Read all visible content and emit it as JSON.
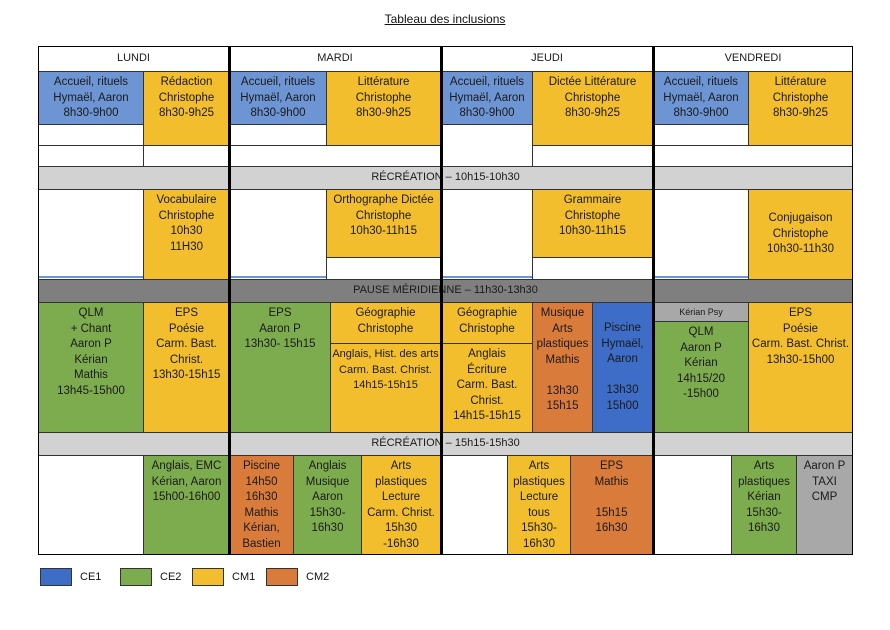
{
  "title": "Tableau des inclusions",
  "days": [
    "LUNDI",
    "MARDI",
    "JEUDI",
    "VENDREDI"
  ],
  "breaks": {
    "recreation1": "RÉCRÉATION – 10h15-10h30",
    "pause": "PAUSE MÉRIDIENNE – 11h30-13h30",
    "recreation2": "RÉCRÉATION – 15h15-15h30"
  },
  "colors": {
    "CE1": "#6d95d4",
    "CE2": "#7dac4f",
    "CM1": "#f2be2e",
    "CM2": "#d97b3a"
  },
  "legend": [
    "CE1",
    "CE2",
    "CM1",
    "CM2"
  ],
  "cells": {
    "lun_accueil": "Accueil, rituels\nHymaël, Aaron\n8h30-9h00",
    "lun_redaction": "Rédaction\nChristophe\n8h30-9h25",
    "mar_accueil": "Accueil, rituels\nHymaël, Aaron\n8h30-9h00",
    "mar_litt": "Littérature\nChristophe\n8h30-9h25",
    "jeu_accueil": "Accueil, rituels\nHymaël, Aaron\n8h30-9h00",
    "jeu_dictee": "Dictée Littérature\nChristophe\n8h30-9h25",
    "ven_accueil": "Accueil, rituels\nHymaël, Aaron\n8h30-9h00",
    "ven_litt": "Littérature\nChristophe\n8h30-9h25",
    "lun_vocab": "Vocabulaire\nChristophe\n10h30\n11H30",
    "mar_ortho": "Orthographe Dictée\nChristophe\n10h30-11h15",
    "jeu_gram": "Grammaire\nChristophe\n10h30-11h15",
    "ven_conj": "Conjugaison\nChristophe\n10h30-11h30",
    "lun_qlm": "QLM\n+ Chant\nAaron P\nKérian\nMathis\n13h45-15h00",
    "lun_eps": "EPS\nPoésie\nCarm. Bast.\nChrist.\n13h30-15h15",
    "mar_eps": "EPS\nAaron P\n13h30- 15h15",
    "mar_geo": "Géographie\nChristophe",
    "mar_anglais": "Anglais, Hist. des arts\nCarm. Bast. Christ.\n14h15-15h15",
    "jeu_geo": "Géographie\nChristophe",
    "jeu_anglais": "Anglais\nÉcriture\nCarm. Bast.\nChrist.\n14h15-15h15",
    "jeu_musique": "Musique\nArts\nplastiques\nMathis\n\n13h30\n15h15",
    "jeu_piscine": "Piscine\nHymaël,\nAaron\n\n13h30\n15h00",
    "ven_psy": "Kérian Psy",
    "ven_qlm": "QLM\nAaron P\nKérian\n14h15/20\n-15h00",
    "ven_eps": "EPS\nPoésie\nCarm. Bast. Christ.\n13h30-15h00",
    "lun_anglais": "Anglais, EMC\nKérian, Aaron\n15h00-16h00",
    "mar_piscine": "Piscine\n14h50\n16h30\nMathis\nKérian,\nBastien",
    "mar_anglais_mus": "Anglais\nMusique\nAaron\n15h30-\n16h30",
    "mar_arts": "Arts\nplastiques\nLecture\nCarm. Christ.\n15h30\n-16h30",
    "jeu_arts": "Arts\nplastiques\nLecture\ntous\n15h30-\n16h30",
    "jeu_eps": "EPS\nMathis\n\n15h15\n16h30",
    "ven_arts": "Arts\nplastiques\nKérian\n15h30-\n16h30",
    "ven_taxi": "Aaron P\nTAXI\nCMP"
  }
}
